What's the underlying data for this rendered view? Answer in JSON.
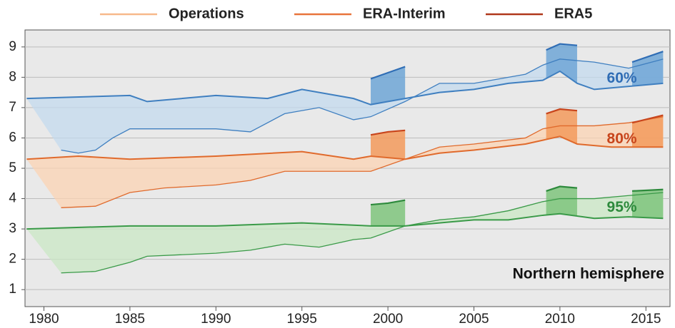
{
  "chart_data": {
    "type": "line",
    "legend": [
      {
        "name": "Operations",
        "color": "#f7b98b"
      },
      {
        "name": "ERA-Interim",
        "color": "#e8743b"
      },
      {
        "name": "ERA5",
        "color": "#b0381b"
      }
    ],
    "annotation": "Northern hemisphere",
    "xlim": [
      1978.9,
      2016.4
    ],
    "xticks": [
      1980,
      1985,
      1990,
      1995,
      2000,
      2005,
      2010,
      2015
    ],
    "ylim": [
      0.44,
      9.56
    ],
    "yticks": [
      1,
      2,
      3,
      4,
      5,
      6,
      7,
      8,
      9
    ],
    "grid": true,
    "groups": [
      {
        "label": "60%",
        "color": "#2f6db5",
        "line_color": "#3f7fc0",
        "fill": "#c3d9ee",
        "era5_fill": "#6fa6d6",
        "operations": {
          "x": [
            1981,
            1982,
            1983,
            1984,
            1985,
            1988,
            1990,
            1992,
            1994,
            1996,
            1998,
            1999,
            2001,
            2003,
            2005,
            2008,
            2009,
            2010,
            2012,
            2014,
            2016
          ],
          "values": [
            5.6,
            5.5,
            5.6,
            6.0,
            6.3,
            6.3,
            6.3,
            6.2,
            6.8,
            7.0,
            6.6,
            6.7,
            7.2,
            7.8,
            7.8,
            8.1,
            8.4,
            8.6,
            8.5,
            8.3,
            8.6
          ]
        },
        "era_interim": {
          "x": [
            1979,
            1985,
            1986,
            1990,
            1993,
            1995,
            1998,
            1999,
            2001,
            2003,
            2005,
            2007,
            2009,
            2010,
            2011,
            2012,
            2014,
            2016
          ],
          "values": [
            7.3,
            7.4,
            7.2,
            7.4,
            7.3,
            7.6,
            7.3,
            7.1,
            7.3,
            7.5,
            7.6,
            7.8,
            7.9,
            8.2,
            7.8,
            7.6,
            7.7,
            7.8
          ]
        },
        "era5": [
          {
            "x": [
              1999,
              2000,
              2001
            ],
            "values": [
              7.95,
              8.15,
              8.35
            ]
          },
          {
            "x": [
              2009.2,
              2010,
              2011
            ],
            "values": [
              8.9,
              9.1,
              9.05
            ]
          },
          {
            "x": [
              2014.2,
              2016
            ],
            "values": [
              8.5,
              8.85
            ]
          }
        ]
      },
      {
        "label": "80%",
        "color": "#c8451c",
        "line_color": "#e06a2c",
        "fill": "#fbd3b3",
        "era5_fill": "#f39a5c",
        "operations": {
          "x": [
            1981,
            1983,
            1985,
            1987,
            1990,
            1992,
            1994,
            1996,
            1999,
            2001,
            2003,
            2005,
            2008,
            2009,
            2010,
            2012,
            2014,
            2016
          ],
          "values": [
            3.7,
            3.75,
            4.2,
            4.35,
            4.45,
            4.6,
            4.9,
            4.9,
            4.9,
            5.3,
            5.7,
            5.8,
            6.0,
            6.3,
            6.4,
            6.4,
            6.5,
            6.7
          ]
        },
        "era_interim": {
          "x": [
            1979,
            1982,
            1985,
            1990,
            1995,
            1998,
            1999,
            2001,
            2003,
            2005,
            2008,
            2010,
            2011,
            2013,
            2016
          ],
          "values": [
            5.3,
            5.4,
            5.3,
            5.4,
            5.55,
            5.3,
            5.4,
            5.3,
            5.5,
            5.6,
            5.8,
            6.05,
            5.8,
            5.7,
            5.7
          ]
        },
        "era5": [
          {
            "x": [
              1999,
              2000,
              2001
            ],
            "values": [
              6.1,
              6.2,
              6.25
            ]
          },
          {
            "x": [
              2009.2,
              2010,
              2011
            ],
            "values": [
              6.8,
              6.95,
              6.9
            ]
          },
          {
            "x": [
              2014.2,
              2016
            ],
            "values": [
              6.5,
              6.75
            ]
          }
        ]
      },
      {
        "label": "95%",
        "color": "#2d8a3c",
        "line_color": "#3a9a48",
        "fill": "#c9e7c4",
        "era5_fill": "#7fc47c",
        "operations": {
          "x": [
            1981,
            1983,
            1985,
            1986,
            1990,
            1992,
            1994,
            1996,
            1998,
            1999,
            2001,
            2003,
            2005,
            2007,
            2009,
            2010,
            2012,
            2014,
            2016
          ],
          "values": [
            1.55,
            1.6,
            1.9,
            2.1,
            2.2,
            2.3,
            2.5,
            2.4,
            2.65,
            2.7,
            3.1,
            3.3,
            3.4,
            3.6,
            3.9,
            4.0,
            4.0,
            4.1,
            4.2
          ]
        },
        "era_interim": {
          "x": [
            1979,
            1985,
            1990,
            1995,
            1999,
            2001,
            2003,
            2005,
            2007,
            2009,
            2010,
            2012,
            2014,
            2016
          ],
          "values": [
            3.0,
            3.1,
            3.1,
            3.2,
            3.1,
            3.1,
            3.2,
            3.3,
            3.3,
            3.45,
            3.5,
            3.35,
            3.4,
            3.35
          ]
        },
        "era5": [
          {
            "x": [
              1999,
              2000,
              2001
            ],
            "values": [
              3.8,
              3.85,
              3.95
            ]
          },
          {
            "x": [
              2009.2,
              2010,
              2011
            ],
            "values": [
              4.25,
              4.4,
              4.35
            ]
          },
          {
            "x": [
              2014.2,
              2016
            ],
            "values": [
              4.25,
              4.3
            ]
          }
        ]
      }
    ]
  }
}
